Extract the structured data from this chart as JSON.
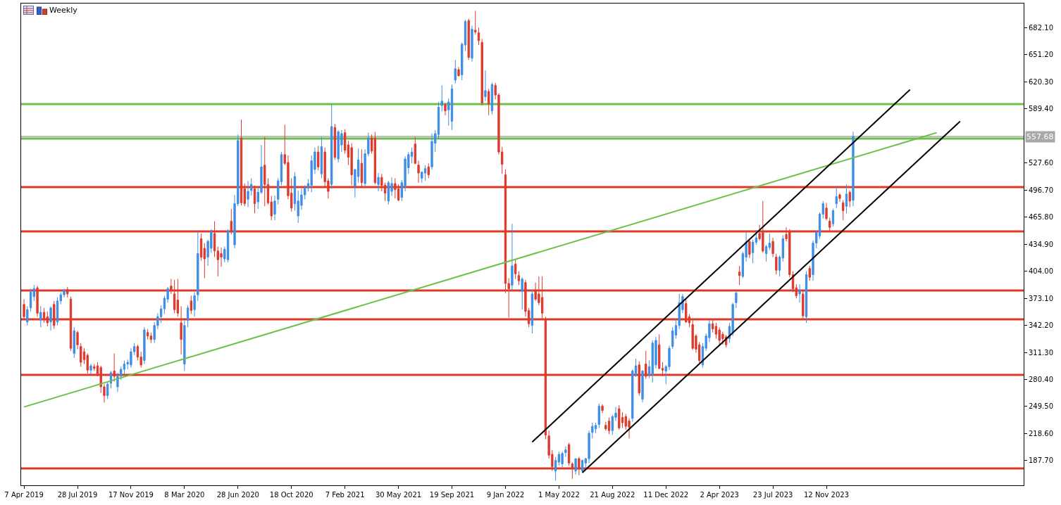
{
  "chart_data": {
    "type": "candlestick",
    "title": "Weekly",
    "colors": [
      "#de3a2c",
      "#3f8ee6",
      "#3f8ee6",
      "#3f8ee6",
      "#de3a2c",
      "#3f8ee6",
      "#de3a2c",
      "#de3a2c",
      "#3f8ee6",
      "#de3a2c",
      "#3f8ee6",
      "#3f8ee6",
      "#3f8ee6",
      "#de3a2c",
      "#de3a2c",
      "#3f8ee6",
      "#de3a2c",
      "#de3a2c",
      "#de3a2c",
      "#de3a2c",
      "#3f8ee6",
      "#de3a2c",
      "#de3a2c",
      "#de3a2c",
      "#de3a2c",
      "#3f8ee6",
      "#3f8ee6",
      "#de3a2c",
      "#3f8ee6",
      "#3f8ee6",
      "#3f8ee6",
      "#3f8ee6",
      "#3f8ee6",
      "#3f8ee6",
      "#de3a2c",
      "#de3a2c",
      "#3f8ee6",
      "#de3a2c",
      "#de3a2c",
      "#3f8ee6",
      "#3f8ee6",
      "#3f8ee6",
      "#3f8ee6",
      "#3f8ee6",
      "#de3a2c",
      "#de3a2c",
      "#de3a2c",
      "#de3a2c",
      "#3f8ee6",
      "#3f8ee6",
      "#de3a2c",
      "#3f8ee6",
      "#3f8ee6",
      "#de3a2c",
      "#de3a2c",
      "#3f8ee6",
      "#3f8ee6",
      "#de3a2c",
      "#de3a2c",
      "#de3a2c",
      "#3f8ee6",
      "#3f8ee6",
      "#de3a2c",
      "#3f8ee6",
      "#3f8ee6",
      "#de3a2c",
      "#de3a2c",
      "#3f8ee6",
      "#3f8ee6",
      "#de3a2c",
      "#3f8ee6",
      "#3f8ee6",
      "#de3a2c",
      "#de3a2c",
      "#de3a2c",
      "#3f8ee6",
      "#3f8ee6",
      "#3f8ee6",
      "#de3a2c",
      "#de3a2c",
      "#de3a2c",
      "#3f8ee6",
      "#3f8ee6",
      "#3f8ee6",
      "#3f8ee6",
      "#3f8ee6",
      "#3f8ee6",
      "#3f8ee6",
      "#de3a2c",
      "#3f8ee6",
      "#de3a2c",
      "#de3a2c",
      "#3f8ee6",
      "#de3a2c",
      "#3f8ee6",
      "#3f8ee6",
      "#de3a2c",
      "#de3a2c",
      "#de3a2c",
      "#3f8ee6",
      "#3f8ee6",
      "#de3a2c",
      "#3f8ee6",
      "#3f8ee6",
      "#de3a2c",
      "#de3a2c",
      "#3f8ee6",
      "#de3a2c",
      "#de3a2c",
      "#3f8ee6",
      "#3f8ee6",
      "#de3a2c",
      "#de3a2c",
      "#3f8ee6",
      "#3f8ee6",
      "#3f8ee6",
      "#3f8ee6",
      "#de3a2c",
      "#de3a2c",
      "#3f8ee6",
      "#3f8ee6",
      "#de3a2c",
      "#3f8ee6",
      "#3f8ee6",
      "#3f8ee6",
      "#3f8ee6",
      "#de3a2c",
      "#3f8ee6",
      "#3f8ee6",
      "#3f8ee6",
      "#de3a2c",
      "#3f8ee6",
      "#3f8ee6",
      "#de3a2c",
      "#3f8ee6",
      "#de3a2c",
      "#de3a2c",
      "#de3a2c",
      "#3f8ee6",
      "#de3a2c",
      "#3f8ee6",
      "#de3a2c",
      "#de3a2c",
      "#de3a2c",
      "#de3a2c",
      "#de3a2c",
      "#3f8ee6",
      "#de3a2c",
      "#de3a2c",
      "#3f8ee6",
      "#de3a2c",
      "#de3a2c",
      "#3f8ee6",
      "#de3a2c",
      "#de3a2c",
      "#de3a2c",
      "#de3a2c",
      "#de3a2c",
      "#de3a2c",
      "#3f8ee6",
      "#3f8ee6",
      "#3f8ee6",
      "#3f8ee6",
      "#de3a2c",
      "#de3a2c",
      "#3f8ee6",
      "#de3a2c",
      "#3f8ee6",
      "#3f8ee6",
      "#3f8ee6",
      "#3f8ee6",
      "#3f8ee6",
      "#3f8ee6",
      "#de3a2c",
      "#de3a2c",
      "#de3a2c",
      "#3f8ee6",
      "#3f8ee6",
      "#de3a2c",
      "#de3a2c",
      "#de3a2c",
      "#de3a2c",
      "#3f8ee6",
      "#3f8ee6",
      "#de3a2c",
      "#3f8ee6",
      "#de3a2c",
      "#3f8ee6",
      "#3f8ee6",
      "#3f8ee6",
      "#de3a2c",
      "#de3a2c",
      "#3f8ee6",
      "#3f8ee6",
      "#3f8ee6",
      "#3f8ee6",
      "#3f8ee6",
      "#3f8ee6",
      "#de3a2c",
      "#de3a2c",
      "#de3a2c",
      "#de3a2c",
      "#de3a2c",
      "#3f8ee6",
      "#3f8ee6",
      "#3f8ee6",
      "#de3a2c",
      "#de3a2c",
      "#de3a2c",
      "#de3a2c",
      "#de3a2c",
      "#3f8ee6",
      "#3f8ee6",
      "#3f8ee6",
      "#de3a2c",
      "#3f8ee6",
      "#3f8ee6",
      "#de3a2c",
      "#3f8ee6",
      "#3f8ee6",
      "#de3a2c",
      "#de3a2c",
      "#3f8ee6",
      "#3f8ee6",
      "#de3a2c",
      "#de3a2c",
      "#3f8ee6",
      "#3f8ee6",
      "#de3a2c",
      "#de3a2c",
      "#de3a2c",
      "#de3a2c",
      "#3f8ee6",
      "#de3a2c",
      "#3f8ee6",
      "#de3a2c",
      "#3f8ee6",
      "#3f8ee6",
      "#3f8ee6",
      "#3f8ee6",
      "#de3a2c",
      "#de3a2c",
      "#3f8ee6",
      "#3f8ee6",
      "#de3a2c",
      "#de3a2c",
      "#3f8ee6",
      "#de3a2c",
      "#3f8ee6"
    ],
    "xlim": [
      "2019-04-01",
      "2024-12-29"
    ],
    "ylim": [
      159.6,
      709.4
    ],
    "xticks": [
      {
        "value": "2019-04-07",
        "label": "7 Apr 2019"
      },
      {
        "value": "2019-07-28",
        "label": "28 Jul 2019"
      },
      {
        "value": "2019-11-17",
        "label": "17 Nov 2019"
      },
      {
        "value": "2020-03-08",
        "label": "8 Mar 2020"
      },
      {
        "value": "2020-06-28",
        "label": "28 Jun 2020"
      },
      {
        "value": "2020-10-18",
        "label": "18 Oct 2020"
      },
      {
        "value": "2021-02-07",
        "label": "7 Feb 2021"
      },
      {
        "value": "2021-05-30",
        "label": "30 May 2021"
      },
      {
        "value": "2021-09-19",
        "label": "19 Sep 2021"
      },
      {
        "value": "2022-01-09",
        "label": "9 Jan 2022"
      },
      {
        "value": "2022-05-01",
        "label": "1 May 2022"
      },
      {
        "value": "2022-08-21",
        "label": "21 Aug 2022"
      },
      {
        "value": "2022-12-11",
        "label": "11 Dec 2022"
      },
      {
        "value": "2023-04-02",
        "label": "2 Apr 2023"
      },
      {
        "value": "2023-07-23",
        "label": "23 Jul 2023"
      },
      {
        "value": "2023-11-12",
        "label": "12 Nov 2023"
      }
    ],
    "yticks": [
      {
        "value": 187.7,
        "label": "187.70"
      },
      {
        "value": 218.6,
        "label": "218.60"
      },
      {
        "value": 249.5,
        "label": "249.50"
      },
      {
        "value": 280.4,
        "label": "280.40"
      },
      {
        "value": 311.3,
        "label": "311.30"
      },
      {
        "value": 342.2,
        "label": "342.20"
      },
      {
        "value": 373.1,
        "label": "373.10"
      },
      {
        "value": 404,
        "label": "404.00"
      },
      {
        "value": 434.9,
        "label": "434.90"
      },
      {
        "value": 465.8,
        "label": "465.80"
      },
      {
        "value": 496.7,
        "label": "496.70"
      },
      {
        "value": 527.6,
        "label": "527.60"
      },
      {
        "value": 589.4,
        "label": "589.40"
      },
      {
        "value": 620.3,
        "label": "620.30"
      },
      {
        "value": 651.2,
        "label": "651.20"
      },
      {
        "value": 682.1,
        "label": "682.10"
      }
    ],
    "ref_lines": [
      {
        "axis": "y",
        "value": 594.6,
        "color": "#6cc04a"
      },
      {
        "axis": "y",
        "value": 557.68,
        "color": "#a8a8a8",
        "label": "557.68"
      },
      {
        "axis": "y",
        "value": 555.3,
        "color": "#6cc04a"
      },
      {
        "axis": "y",
        "value": 499.9,
        "color": "#dc3a26"
      },
      {
        "axis": "y",
        "value": 449.3,
        "color": "#dc3a26"
      },
      {
        "axis": "y",
        "value": 381.9,
        "color": "#dc3a26"
      },
      {
        "axis": "y",
        "value": 349,
        "color": "#dc3a26"
      },
      {
        "axis": "y",
        "value": 285.6,
        "color": "#dc3a26"
      },
      {
        "axis": "y",
        "value": 178.9,
        "color": "#dc3a26"
      }
    ],
    "series": [
      {
        "type": "line",
        "color": "#6cc04a",
        "x": [
          "2019-04-07",
          "2024-06-30"
        ],
        "values": [
          249,
          562
        ]
      },
      {
        "type": "line",
        "color": "#000000",
        "x": [
          "2022-03-06",
          "2024-05-05"
        ],
        "values": [
          209,
          611
        ]
      },
      {
        "type": "line",
        "color": "#000000",
        "x": [
          "2022-06-19",
          "2024-08-18"
        ],
        "values": [
          174,
          575
        ]
      }
    ],
    "x": [
      "2019-04-07",
      "2019-04-14",
      "2019-04-21",
      "2019-04-28",
      "2019-05-05",
      "2019-05-12",
      "2019-05-19",
      "2019-05-26",
      "2019-06-02",
      "2019-06-09",
      "2019-06-16",
      "2019-06-23",
      "2019-06-30",
      "2019-07-07",
      "2019-07-14",
      "2019-07-21",
      "2019-07-28",
      "2019-08-04",
      "2019-08-11",
      "2019-08-18",
      "2019-08-25",
      "2019-09-01",
      "2019-09-08",
      "2019-09-15",
      "2019-09-22",
      "2019-09-29",
      "2019-10-06",
      "2019-10-13",
      "2019-10-20",
      "2019-10-27",
      "2019-11-03",
      "2019-11-10",
      "2019-11-17",
      "2019-11-24",
      "2019-12-01",
      "2019-12-08",
      "2019-12-15",
      "2019-12-22",
      "2019-12-29",
      "2020-01-05",
      "2020-01-12",
      "2020-01-19",
      "2020-01-26",
      "2020-02-02",
      "2020-02-09",
      "2020-02-16",
      "2020-02-23",
      "2020-03-01",
      "2020-03-08",
      "2020-03-15",
      "2020-03-22",
      "2020-03-29",
      "2020-04-05",
      "2020-04-12",
      "2020-04-19",
      "2020-04-26",
      "2020-05-03",
      "2020-05-10",
      "2020-05-17",
      "2020-05-24",
      "2020-05-31",
      "2020-06-07",
      "2020-06-14",
      "2020-06-21",
      "2020-06-28",
      "2020-07-05",
      "2020-07-12",
      "2020-07-19",
      "2020-07-26",
      "2020-08-02",
      "2020-08-09",
      "2020-08-16",
      "2020-08-23",
      "2020-08-30",
      "2020-09-06",
      "2020-09-13",
      "2020-09-20",
      "2020-09-27",
      "2020-10-04",
      "2020-10-11",
      "2020-10-18",
      "2020-10-25",
      "2020-11-01",
      "2020-11-08",
      "2020-11-15",
      "2020-11-22",
      "2020-11-29",
      "2020-12-06",
      "2020-12-13",
      "2020-12-20",
      "2020-12-27",
      "2021-01-03",
      "2021-01-10",
      "2021-01-17",
      "2021-01-24",
      "2021-01-31",
      "2021-02-07",
      "2021-02-14",
      "2021-02-21",
      "2021-02-28",
      "2021-03-07",
      "2021-03-14",
      "2021-03-21",
      "2021-03-28",
      "2021-04-04",
      "2021-04-11",
      "2021-04-18",
      "2021-04-25",
      "2021-05-02",
      "2021-05-09",
      "2021-05-16",
      "2021-05-23",
      "2021-05-30",
      "2021-06-06",
      "2021-06-13",
      "2021-06-20",
      "2021-06-27",
      "2021-07-04",
      "2021-07-11",
      "2021-07-18",
      "2021-07-25",
      "2021-08-01",
      "2021-08-08",
      "2021-08-15",
      "2021-08-22",
      "2021-08-29",
      "2021-09-05",
      "2021-09-12",
      "2021-09-19",
      "2021-09-26",
      "2021-10-03",
      "2021-10-10",
      "2021-10-17",
      "2021-10-24",
      "2021-10-31",
      "2021-11-07",
      "2021-11-14",
      "2021-11-21",
      "2021-11-28",
      "2021-12-05",
      "2021-12-12",
      "2021-12-19",
      "2021-12-26",
      "2022-01-02",
      "2022-01-09",
      "2022-01-16",
      "2022-01-23",
      "2022-01-30",
      "2022-02-06",
      "2022-02-13",
      "2022-02-20",
      "2022-02-27",
      "2022-03-06",
      "2022-03-13",
      "2022-03-20",
      "2022-03-27",
      "2022-04-03",
      "2022-04-10",
      "2022-04-17",
      "2022-04-24",
      "2022-05-01",
      "2022-05-08",
      "2022-05-15",
      "2022-05-22",
      "2022-05-29",
      "2022-06-05",
      "2022-06-12",
      "2022-06-19",
      "2022-06-26",
      "2022-07-03",
      "2022-07-10",
      "2022-07-17",
      "2022-07-24",
      "2022-07-31",
      "2022-08-07",
      "2022-08-14",
      "2022-08-21",
      "2022-08-28",
      "2022-09-04",
      "2022-09-11",
      "2022-09-18",
      "2022-09-25",
      "2022-10-02",
      "2022-10-09",
      "2022-10-16",
      "2022-10-23",
      "2022-10-30",
      "2022-11-06",
      "2022-11-13",
      "2022-11-20",
      "2022-11-27",
      "2022-12-04",
      "2022-12-11",
      "2022-12-18",
      "2022-12-25",
      "2023-01-01",
      "2023-01-08",
      "2023-01-15",
      "2023-01-22",
      "2023-01-29",
      "2023-02-05",
      "2023-02-12",
      "2023-02-19",
      "2023-02-26",
      "2023-03-05",
      "2023-03-12",
      "2023-03-19",
      "2023-03-26",
      "2023-04-02",
      "2023-04-09",
      "2023-04-16",
      "2023-04-23",
      "2023-04-30",
      "2023-05-07",
      "2023-05-14",
      "2023-05-21",
      "2023-05-28",
      "2023-06-04",
      "2023-06-11",
      "2023-06-18",
      "2023-06-25",
      "2023-07-02",
      "2023-07-09",
      "2023-07-16",
      "2023-07-23",
      "2023-07-30",
      "2023-08-06",
      "2023-08-13",
      "2023-08-20",
      "2023-08-27",
      "2023-09-03",
      "2023-09-10",
      "2023-09-17",
      "2023-09-24",
      "2023-10-01",
      "2023-10-08",
      "2023-10-15",
      "2023-10-22",
      "2023-10-29",
      "2023-11-05",
      "2023-11-12",
      "2023-11-19",
      "2023-11-26",
      "2023-12-03",
      "2023-12-10",
      "2023-12-17",
      "2023-12-24",
      "2023-12-31",
      "2024-01-07"
    ],
    "ohlc": [
      [
        366,
        372,
        348,
        352
      ],
      [
        346,
        364,
        342,
        360
      ],
      [
        362,
        384,
        358,
        380
      ],
      [
        375,
        388,
        370,
        384
      ],
      [
        385,
        387,
        352,
        356
      ],
      [
        348,
        364,
        340,
        357
      ],
      [
        357,
        362,
        345,
        350
      ],
      [
        352,
        358,
        341,
        345
      ],
      [
        346,
        364,
        336,
        362
      ],
      [
        366,
        370,
        338,
        342
      ],
      [
        346,
        374,
        342,
        370
      ],
      [
        370,
        380,
        366,
        377
      ],
      [
        377,
        384,
        374,
        382
      ],
      [
        383,
        386,
        374,
        378
      ],
      [
        372,
        375,
        313,
        316
      ],
      [
        310,
        340,
        305,
        336
      ],
      [
        334,
        336,
        315,
        320
      ],
      [
        318,
        322,
        295,
        300
      ],
      [
        312,
        316,
        298,
        303
      ],
      [
        308,
        310,
        287,
        291
      ],
      [
        291,
        298,
        286,
        296
      ],
      [
        295,
        298,
        290,
        293
      ],
      [
        296,
        300,
        284,
        287
      ],
      [
        294,
        296,
        265,
        272
      ],
      [
        272,
        275,
        254,
        262
      ],
      [
        262,
        277,
        258,
        275
      ],
      [
        276,
        290,
        270,
        288
      ],
      [
        290,
        310,
        278,
        284
      ],
      [
        272,
        288,
        266,
        284
      ],
      [
        284,
        295,
        280,
        292
      ],
      [
        292,
        302,
        287,
        298
      ],
      [
        298,
        303,
        292,
        300
      ],
      [
        297,
        316,
        294,
        312
      ],
      [
        312,
        322,
        308,
        318
      ],
      [
        318,
        320,
        302,
        306
      ],
      [
        306,
        312,
        294,
        297
      ],
      [
        302,
        340,
        298,
        337
      ],
      [
        334,
        338,
        326,
        330
      ],
      [
        330,
        334,
        322,
        326
      ],
      [
        326,
        346,
        322,
        342
      ],
      [
        342,
        356,
        338,
        352
      ],
      [
        352,
        365,
        345,
        361
      ],
      [
        361,
        376,
        355,
        373
      ],
      [
        372,
        386,
        368,
        384
      ],
      [
        387,
        395,
        378,
        382
      ],
      [
        378,
        394,
        356,
        360
      ],
      [
        371,
        395,
        352,
        356
      ],
      [
        345,
        364,
        309,
        326
      ],
      [
        298,
        348,
        290,
        342
      ],
      [
        348,
        365,
        340,
        362
      ],
      [
        370,
        376,
        355,
        359
      ],
      [
        360,
        380,
        352,
        376
      ],
      [
        377,
        449,
        370,
        424
      ],
      [
        441,
        447,
        416,
        420
      ],
      [
        430,
        436,
        396,
        418
      ],
      [
        420,
        440,
        410,
        438
      ],
      [
        430,
        452,
        425,
        449
      ],
      [
        447,
        461,
        420,
        427
      ],
      [
        427,
        432,
        398,
        417
      ],
      [
        424,
        431,
        409,
        420
      ],
      [
        418,
        432,
        414,
        429
      ],
      [
        417,
        452,
        414,
        450
      ],
      [
        461,
        475,
        446,
        449
      ],
      [
        434,
        491,
        430,
        481
      ],
      [
        481,
        560,
        478,
        553
      ],
      [
        556,
        577,
        479,
        482
      ],
      [
        498,
        504,
        478,
        481
      ],
      [
        486,
        507,
        477,
        495
      ],
      [
        496,
        510,
        490,
        503
      ],
      [
        498,
        502,
        470,
        481
      ],
      [
        483,
        500,
        475,
        494
      ],
      [
        494,
        548,
        492,
        523
      ],
      [
        525,
        557,
        478,
        503
      ],
      [
        503,
        510,
        480,
        482
      ],
      [
        483,
        490,
        462,
        467
      ],
      [
        469,
        490,
        462,
        484
      ],
      [
        486,
        510,
        480,
        507
      ],
      [
        506,
        540,
        502,
        537
      ],
      [
        537,
        571,
        525,
        527
      ],
      [
        528,
        536,
        486,
        490
      ],
      [
        493,
        510,
        472,
        476
      ],
      [
        481,
        517,
        473,
        512
      ],
      [
        467,
        496,
        459,
        484
      ],
      [
        479,
        498,
        474,
        491
      ],
      [
        491,
        502,
        486,
        499
      ],
      [
        499,
        509,
        495,
        504
      ],
      [
        502,
        536,
        494,
        530
      ],
      [
        520,
        545,
        515,
        540
      ],
      [
        540,
        547,
        519,
        523
      ],
      [
        515,
        557,
        510,
        546
      ],
      [
        540,
        545,
        500,
        506
      ],
      [
        507,
        510,
        487,
        495
      ],
      [
        503,
        594,
        498,
        569
      ],
      [
        568,
        572,
        531,
        534
      ],
      [
        532,
        565,
        528,
        563
      ],
      [
        548,
        565,
        540,
        561
      ],
      [
        562,
        566,
        538,
        542
      ],
      [
        548,
        553,
        525,
        534
      ],
      [
        545,
        550,
        502,
        514
      ],
      [
        501,
        521,
        488,
        520
      ],
      [
        512,
        544,
        505,
        531
      ],
      [
        527,
        543,
        500,
        505
      ],
      [
        504,
        543,
        500,
        538
      ],
      [
        538,
        562,
        535,
        556
      ],
      [
        556,
        560,
        538,
        541
      ],
      [
        556,
        563,
        503,
        505
      ],
      [
        503,
        516,
        495,
        511
      ],
      [
        511,
        515,
        495,
        502
      ],
      [
        502,
        505,
        484,
        493
      ],
      [
        484,
        507,
        480,
        505
      ],
      [
        495,
        511,
        490,
        504
      ],
      [
        504,
        510,
        487,
        497
      ],
      [
        498,
        503,
        484,
        485
      ],
      [
        488,
        508,
        484,
        505
      ],
      [
        500,
        535,
        495,
        532
      ],
      [
        522,
        540,
        515,
        537
      ],
      [
        535,
        545,
        527,
        540
      ],
      [
        549,
        557,
        526,
        527
      ],
      [
        525,
        530,
        505,
        516
      ],
      [
        510,
        518,
        505,
        517
      ],
      [
        516,
        525,
        507,
        521
      ],
      [
        523,
        527,
        510,
        514
      ],
      [
        523,
        561,
        520,
        552
      ],
      [
        550,
        565,
        540,
        561
      ],
      [
        560,
        597,
        555,
        591
      ],
      [
        593,
        616,
        586,
        598
      ],
      [
        594,
        596,
        582,
        587
      ],
      [
        588,
        601,
        570,
        597
      ],
      [
        575,
        617,
        565,
        612
      ],
      [
        622,
        645,
        618,
        635
      ],
      [
        634,
        637,
        626,
        627
      ],
      [
        628,
        665,
        622,
        663
      ],
      [
        662,
        691,
        655,
        689
      ],
      [
        690,
        692,
        645,
        648
      ],
      [
        647,
        684,
        643,
        680
      ],
      [
        679,
        701,
        674,
        677
      ],
      [
        676,
        682,
        662,
        667
      ],
      [
        665,
        669,
        593,
        596
      ],
      [
        603,
        633,
        598,
        610
      ],
      [
        609,
        612,
        582,
        595
      ],
      [
        587,
        619,
        583,
        617
      ],
      [
        616,
        619,
        600,
        605
      ],
      [
        605,
        607,
        537,
        540
      ],
      [
        540,
        546,
        515,
        526
      ],
      [
        514,
        520,
        379,
        390
      ],
      [
        390,
        396,
        351,
        384
      ],
      [
        388,
        458,
        382,
        410
      ],
      [
        412,
        418,
        395,
        401
      ],
      [
        399,
        404,
        388,
        393
      ],
      [
        381,
        397,
        360,
        395
      ],
      [
        391,
        394,
        352,
        358
      ],
      [
        359,
        362,
        340,
        344
      ],
      [
        342,
        383,
        333,
        378
      ],
      [
        381,
        391,
        370,
        372
      ],
      [
        378,
        398,
        365,
        368
      ],
      [
        374,
        398,
        350,
        356
      ],
      [
        348,
        352,
        212,
        217
      ],
      [
        216,
        222,
        190,
        194
      ],
      [
        195,
        200,
        176,
        181
      ],
      [
        176,
        192,
        165,
        188
      ],
      [
        186,
        198,
        182,
        195
      ],
      [
        184,
        198,
        180,
        196
      ],
      [
        197,
        204,
        192,
        200
      ],
      [
        206,
        208,
        182,
        185
      ],
      [
        184,
        186,
        167,
        180
      ],
      [
        176,
        190,
        172,
        190
      ],
      [
        190,
        192,
        171,
        180
      ],
      [
        176,
        189,
        174,
        188
      ],
      [
        185,
        191,
        177,
        190
      ],
      [
        190,
        222,
        185,
        219
      ],
      [
        220,
        231,
        213,
        227
      ],
      [
        224,
        231,
        219,
        228
      ],
      [
        229,
        253,
        225,
        250
      ],
      [
        250,
        252,
        242,
        245
      ],
      [
        228,
        232,
        222,
        224
      ],
      [
        233,
        237,
        218,
        222
      ],
      [
        222,
        240,
        217,
        238
      ],
      [
        237,
        249,
        233,
        242
      ],
      [
        247,
        251,
        223,
        225
      ],
      [
        237,
        243,
        225,
        231
      ],
      [
        238,
        241,
        223,
        227
      ],
      [
        233,
        236,
        213,
        226
      ],
      [
        236,
        292,
        232,
        290
      ],
      [
        286,
        304,
        283,
        296
      ],
      [
        297,
        301,
        262,
        265
      ],
      [
        258,
        291,
        254,
        290
      ],
      [
        298,
        313,
        281,
        284
      ],
      [
        286,
        302,
        282,
        295
      ],
      [
        286,
        325,
        277,
        322
      ],
      [
        297,
        329,
        293,
        325
      ],
      [
        320,
        332,
        292,
        293
      ],
      [
        293,
        300,
        284,
        291
      ],
      [
        290,
        297,
        275,
        295
      ],
      [
        295,
        319,
        291,
        316
      ],
      [
        318,
        340,
        315,
        336
      ],
      [
        331,
        349,
        327,
        342
      ],
      [
        342,
        378,
        338,
        368
      ],
      [
        360,
        378,
        356,
        375
      ],
      [
        367,
        372,
        345,
        346
      ],
      [
        352,
        355,
        340,
        345
      ],
      [
        343,
        348,
        314,
        316
      ],
      [
        330,
        332,
        311,
        315
      ],
      [
        320,
        323,
        299,
        302
      ],
      [
        297,
        322,
        294,
        318
      ],
      [
        316,
        333,
        313,
        330
      ],
      [
        328,
        348,
        323,
        344
      ],
      [
        344,
        349,
        334,
        338
      ],
      [
        341,
        345,
        327,
        332
      ],
      [
        337,
        340,
        319,
        325
      ],
      [
        332,
        335,
        320,
        327
      ],
      [
        329,
        331,
        317,
        320
      ],
      [
        327,
        345,
        322,
        341
      ],
      [
        334,
        368,
        330,
        366
      ],
      [
        368,
        381,
        362,
        379
      ],
      [
        403,
        410,
        388,
        399
      ],
      [
        398,
        426,
        396,
        424
      ],
      [
        420,
        448,
        415,
        437
      ],
      [
        438,
        441,
        419,
        423
      ],
      [
        425,
        440,
        413,
        437
      ],
      [
        437,
        451,
        434,
        442
      ],
      [
        447,
        457,
        439,
        441
      ],
      [
        448,
        484,
        425,
        427
      ],
      [
        424,
        434,
        415,
        432
      ],
      [
        431,
        447,
        428,
        436
      ],
      [
        438,
        442,
        420,
        424
      ],
      [
        420,
        424,
        400,
        405
      ],
      [
        405,
        422,
        398,
        420
      ],
      [
        419,
        445,
        415,
        441
      ],
      [
        446,
        454,
        438,
        441
      ],
      [
        449,
        452,
        397,
        400
      ],
      [
        400,
        404,
        380,
        384
      ],
      [
        385,
        389,
        373,
        376
      ],
      [
        378,
        389,
        368,
        382
      ],
      [
        378,
        382,
        350,
        353
      ],
      [
        352,
        404,
        345,
        400
      ],
      [
        407,
        410,
        393,
        397
      ],
      [
        400,
        439,
        393,
        436
      ],
      [
        436,
        450,
        430,
        448
      ],
      [
        444,
        471,
        441,
        469
      ],
      [
        469,
        484,
        464,
        481
      ],
      [
        476,
        482,
        462,
        464
      ],
      [
        461,
        465,
        449,
        454
      ],
      [
        458,
        475,
        455,
        473
      ],
      [
        481,
        500,
        476,
        489
      ],
      [
        491,
        493,
        483,
        487
      ],
      [
        482,
        485,
        462,
        473
      ],
      [
        478,
        503,
        470,
        492
      ],
      [
        494,
        496,
        477,
        484
      ],
      [
        485,
        563,
        478,
        557.68
      ]
    ]
  }
}
